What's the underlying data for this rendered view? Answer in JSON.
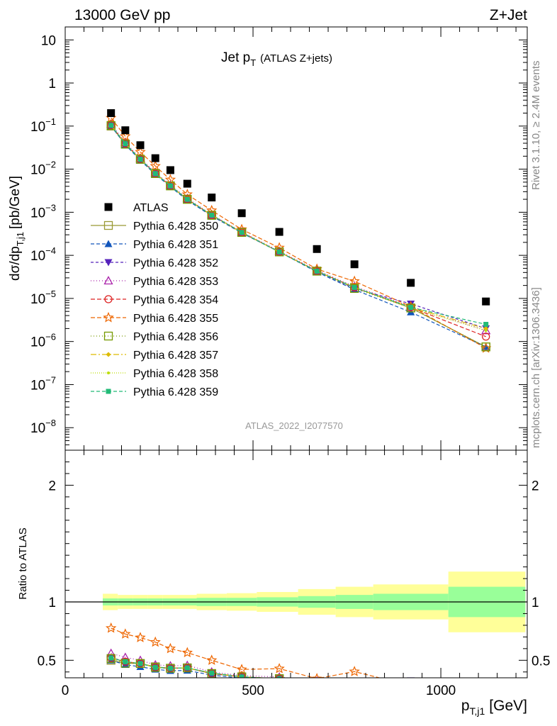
{
  "header": {
    "left": "13000 GeV pp",
    "right": "Z+Jet"
  },
  "side_labels": {
    "top": "Rivet 3.1.10, ≥ 2.4M events",
    "bottom": "mcplots.cern.ch [arXiv:1306.3436]"
  },
  "chart_data": {
    "type": "line",
    "title_main": "Jet p",
    "title_sub": "T",
    "title_note": "(ATLAS Z+jets)",
    "watermark": "ATLAS_2022_I2077570",
    "y_scale": "log",
    "ylabel_main": "dσ/dp",
    "ylabel_sub": "T,j1",
    "ylabel_unit": "[pb/GeV]",
    "ylim": [
      3e-09,
      20
    ],
    "yticks": [
      {
        "v": 1e-08,
        "mant": "10",
        "exp": "−8"
      },
      {
        "v": 1e-07,
        "mant": "10",
        "exp": "−7"
      },
      {
        "v": 1e-06,
        "mant": "10",
        "exp": "−6"
      },
      {
        "v": 1e-05,
        "mant": "10",
        "exp": "−5"
      },
      {
        "v": 0.0001,
        "mant": "10",
        "exp": "−4"
      },
      {
        "v": 0.001,
        "mant": "10",
        "exp": "−3"
      },
      {
        "v": 0.01,
        "mant": "10",
        "exp": "−2"
      },
      {
        "v": 0.1,
        "mant": "10",
        "exp": "−1"
      },
      {
        "v": 1,
        "mant": "1",
        "exp": ""
      },
      {
        "v": 10,
        "mant": "10",
        "exp": ""
      }
    ],
    "xlabel_main": "p",
    "xlabel_sub": "T,j1",
    "xlabel_unit": "[GeV]",
    "xlim": [
      0,
      1230
    ],
    "xticks": [
      0,
      500,
      1000
    ],
    "x": [
      122,
      160,
      200,
      240,
      280,
      325,
      390,
      470,
      570,
      670,
      770,
      920,
      1120
    ],
    "data": {
      "name": "ATLAS",
      "color": "#000000",
      "values": [
        0.2,
        0.08,
        0.036,
        0.018,
        0.0095,
        0.0046,
        0.0022,
        0.00095,
        0.00035,
        0.00014,
        6.2e-05,
        2.3e-05,
        8.5e-06
      ]
    },
    "series": [
      {
        "name": "Pythia 6.428 350",
        "color": "#999933",
        "marker": "square-open",
        "dash": "",
        "values": [
          0.1,
          0.038,
          0.017,
          0.008,
          0.0041,
          0.002,
          0.00085,
          0.00034,
          0.00012,
          4.3e-05,
          1.8e-05,
          6e-06,
          7.5e-07
        ]
      },
      {
        "name": "Pythia 6.428 351",
        "color": "#1155bb",
        "marker": "triangle-up",
        "dash": "5,3",
        "values": [
          0.1,
          0.037,
          0.016,
          0.0076,
          0.0039,
          0.0019,
          0.00082,
          0.00033,
          0.00012,
          4.1e-05,
          1.6e-05,
          4.8e-06,
          7.5e-07
        ]
      },
      {
        "name": "Pythia 6.428 352",
        "color": "#5522bb",
        "marker": "triangle-down",
        "dash": "4,3",
        "values": [
          0.105,
          0.039,
          0.017,
          0.0079,
          0.0041,
          0.002,
          0.00086,
          0.00034,
          0.00012,
          4.3e-05,
          1.7e-05,
          7.5e-06,
          2e-06
        ]
      },
      {
        "name": "Pythia 6.428 353",
        "color": "#aa22aa",
        "marker": "triangle-open",
        "dash": "1,3",
        "values": [
          0.112,
          0.042,
          0.018,
          0.0083,
          0.0043,
          0.0021,
          0.00088,
          0.00035,
          0.000125,
          4.5e-05,
          1.9e-05,
          6.5e-06,
          1.8e-06
        ]
      },
      {
        "name": "Pythia 6.428 354",
        "color": "#dd2222",
        "marker": "circle-open",
        "dash": "6,3",
        "values": [
          0.104,
          0.039,
          0.017,
          0.0079,
          0.0041,
          0.002,
          0.00085,
          0.00034,
          0.00012,
          4.3e-05,
          1.8e-05,
          6.2e-06,
          1.3e-06
        ]
      },
      {
        "name": "Pythia 6.428 355",
        "color": "#ee6600",
        "marker": "star-open",
        "dash": "6,3",
        "values": [
          0.155,
          0.058,
          0.025,
          0.0118,
          0.0057,
          0.0026,
          0.0011,
          0.0004,
          0.00015,
          4.8e-05,
          2.5e-05,
          6.5e-06,
          7e-07
        ]
      },
      {
        "name": "Pythia 6.428 356",
        "color": "#779900",
        "marker": "square-open",
        "dash": "1,3",
        "values": [
          0.103,
          0.038,
          0.017,
          0.0079,
          0.0041,
          0.002,
          0.00085,
          0.00034,
          0.00012,
          4.3e-05,
          1.7e-05,
          6e-06,
          7.5e-07
        ]
      },
      {
        "name": "Pythia 6.428 357",
        "color": "#ddbb00",
        "marker": "diamond",
        "dash": "8,3,2,3",
        "values": [
          0.104,
          0.039,
          0.017,
          0.0079,
          0.0041,
          0.002,
          0.00086,
          0.00034,
          0.00012,
          4.3e-05,
          1.8e-05,
          6.2e-06,
          2e-06
        ]
      },
      {
        "name": "Pythia 6.428 358",
        "color": "#bbdd00",
        "marker": "dot",
        "dash": "1,2",
        "values": [
          0.104,
          0.039,
          0.017,
          0.0079,
          0.0041,
          0.002,
          0.00086,
          0.00034,
          0.00012,
          4.3e-05,
          1.8e-05,
          6e-06,
          1.8e-06
        ]
      },
      {
        "name": "Pythia 6.428 359",
        "color": "#22bb77",
        "marker": "square",
        "dash": "5,3",
        "values": [
          0.104,
          0.039,
          0.017,
          0.0079,
          0.0041,
          0.002,
          0.00086,
          0.00034,
          0.00012,
          4.3e-05,
          1.8e-05,
          6.2e-06,
          2.5e-06
        ]
      }
    ],
    "ratio": {
      "ylabel": "Ratio to ATLAS",
      "ylim": [
        0.35,
        2.3
      ],
      "yticks": [
        0.5,
        1,
        2
      ],
      "ytick_labels": [
        "0.5",
        "1",
        "2"
      ],
      "bands": [
        {
          "xlo": 100,
          "xhi": 140,
          "green": 0.03,
          "yellow": 0.07
        },
        {
          "xlo": 140,
          "xhi": 180,
          "green": 0.03,
          "yellow": 0.06
        },
        {
          "xlo": 180,
          "xhi": 220,
          "green": 0.03,
          "yellow": 0.06
        },
        {
          "xlo": 220,
          "xhi": 260,
          "green": 0.03,
          "yellow": 0.06
        },
        {
          "xlo": 260,
          "xhi": 300,
          "green": 0.03,
          "yellow": 0.06
        },
        {
          "xlo": 300,
          "xhi": 350,
          "green": 0.03,
          "yellow": 0.06
        },
        {
          "xlo": 350,
          "xhi": 430,
          "green": 0.035,
          "yellow": 0.07
        },
        {
          "xlo": 430,
          "xhi": 510,
          "green": 0.035,
          "yellow": 0.075
        },
        {
          "xlo": 510,
          "xhi": 620,
          "green": 0.04,
          "yellow": 0.085
        },
        {
          "xlo": 620,
          "xhi": 720,
          "green": 0.05,
          "yellow": 0.11
        },
        {
          "xlo": 720,
          "xhi": 820,
          "green": 0.06,
          "yellow": 0.13
        },
        {
          "xlo": 820,
          "xhi": 1020,
          "green": 0.07,
          "yellow": 0.15
        },
        {
          "xlo": 1020,
          "xhi": 1225,
          "green": 0.13,
          "yellow": 0.26
        }
      ]
    }
  }
}
